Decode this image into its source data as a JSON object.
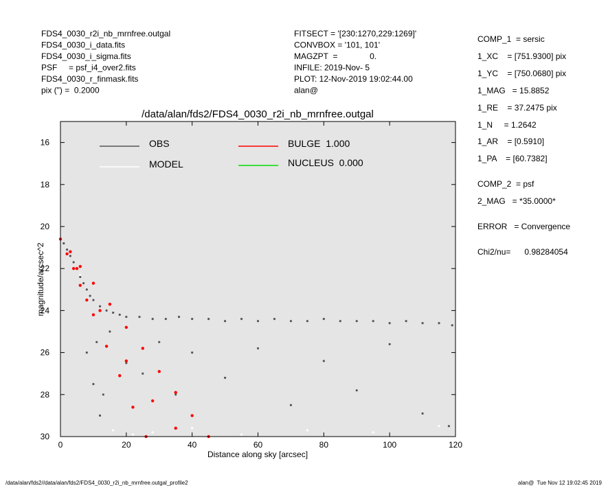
{
  "chart_data": {
    "type": "scatter",
    "title": "/data/alan/fds2/FDS4_0030_r2i_nb_mrnfree.outgal",
    "x_label": "Distance along sky [arcsec]",
    "y_label": "magnitude/arcsec^2",
    "xlim": [
      0,
      120
    ],
    "ylim": [
      30,
      15
    ],
    "xticks": [
      0,
      20,
      40,
      60,
      80,
      100,
      120
    ],
    "yticks": [
      16,
      18,
      20,
      22,
      24,
      26,
      28,
      30
    ],
    "header_left": [
      "FDS4_0030_r2i_nb_mrnfree.outgal",
      "FDS4_0030_i_data.fits",
      "FDS4_0030_i_sigma.fits",
      "PSF     = psf_i4_over2.fits",
      "FDS4_0030_r_finmask.fits",
      "pix (\") =  0.2000"
    ],
    "header_middle": [
      "FITSECT = '[230:1270,229:1269]'",
      "CONVBOX = '101, 101'",
      "MAGZPT  =              0.",
      "INFILE: 2019-Nov- 5",
      "PLOT: 12-Nov-2019 19:02:44.00",
      "alan@"
    ],
    "header_right": [
      "COMP_1  = sersic",
      "1_XC    = [751.9300] pix",
      "1_YC    = [750.0680] pix",
      "1_MAG   = 15.8852",
      "1_RE    = 37.2475 pix",
      "1_N     = 1.2642",
      "1_AR    = [0.5910]",
      "1_PA    = [60.7382]",
      "COMP_2  = psf",
      "2_MAG   = *35.0000*",
      "ERROR   = Convergence",
      "Chi2/nu=      0.98284054"
    ],
    "footer_left": "/data/alan/fds2//data/alan/fds2/FDS4_0030_r2i_nb_mrnfree.outgal_profile2",
    "footer_right": "alan@  Tue Nov 12 19:02:45 2019",
    "series": [
      {
        "name": "OBS",
        "color": "#555555",
        "x": [
          1,
          2,
          3,
          4,
          5,
          6,
          7,
          8,
          9,
          10,
          12,
          14,
          16,
          18,
          20,
          24,
          28,
          32,
          36,
          40,
          45,
          50,
          55,
          60,
          65,
          70,
          75,
          80,
          85,
          90,
          95,
          100,
          105,
          110,
          115,
          119,
          8,
          10,
          12,
          15,
          20,
          25,
          30,
          35,
          40,
          50,
          60,
          70,
          80,
          90,
          100,
          110,
          118,
          11,
          13
        ],
        "values": [
          20.8,
          21.1,
          21.4,
          21.7,
          22.0,
          22.4,
          22.7,
          23.0,
          23.3,
          23.5,
          23.8,
          24.0,
          24.1,
          24.2,
          24.3,
          24.3,
          24.4,
          24.4,
          24.3,
          24.4,
          24.4,
          24.5,
          24.4,
          24.5,
          24.4,
          24.5,
          24.5,
          24.4,
          24.5,
          24.5,
          24.5,
          24.6,
          24.5,
          24.6,
          24.6,
          24.7,
          26,
          27.5,
          29,
          25,
          26.5,
          27,
          25.5,
          28,
          26,
          27.2,
          25.8,
          28.5,
          26.4,
          27.8,
          25.6,
          28.9,
          29.5,
          25.5,
          28
        ]
      },
      {
        "name": "MODEL",
        "color": "#ffffff",
        "x": [
          16,
          22,
          28,
          40,
          55,
          75,
          95,
          115,
          3,
          6
        ],
        "values": [
          29.7,
          29.9,
          29.8,
          29.6,
          29.9,
          29.7,
          29.8,
          29.5,
          21.2,
          22.3
        ]
      },
      {
        "name": "BULGE  1.000",
        "color": "#ff0000",
        "x": [
          0,
          2,
          4,
          6,
          8,
          10,
          14,
          18,
          22,
          26,
          3,
          6,
          10,
          15,
          20,
          25,
          30,
          35,
          40,
          45,
          5,
          12,
          20,
          28,
          35
        ],
        "values": [
          20.6,
          21.3,
          22.0,
          22.8,
          23.5,
          24.2,
          25.7,
          27.1,
          28.6,
          30,
          21.2,
          21.9,
          22.7,
          23.7,
          24.8,
          25.8,
          26.9,
          27.9,
          29.0,
          30,
          22.0,
          24.0,
          26.4,
          28.3,
          29.6
        ]
      },
      {
        "name": "NUCLEUS  0.000",
        "color": "#00dd00",
        "x": [],
        "values": []
      }
    ]
  }
}
